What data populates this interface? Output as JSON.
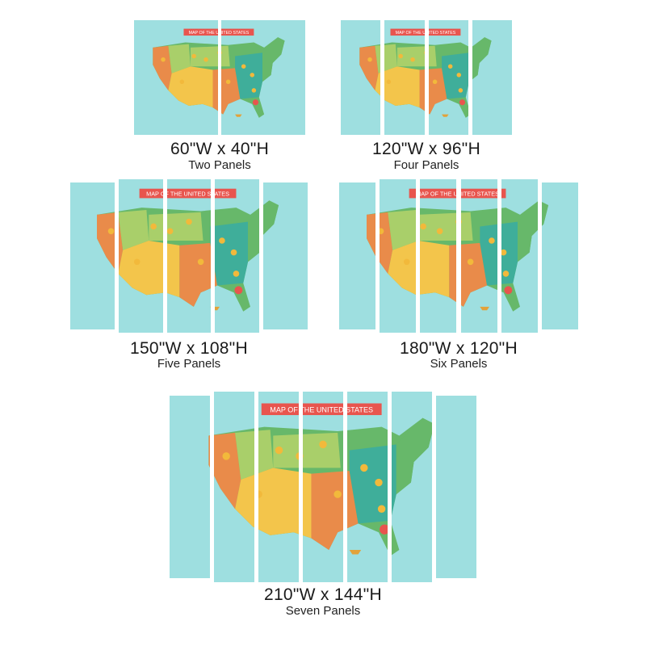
{
  "map_title": "MAP OF THE UNITED STATES",
  "colors": {
    "ocean": "#9edfe0",
    "banner": "#e8554e",
    "land_orange": "#e98b4a",
    "land_yellow": "#f3c54b",
    "land_green": "#67b86a",
    "land_teal": "#3fae9a",
    "land_light_green": "#a9cf6a"
  },
  "options": [
    {
      "size": "60\"W x 40\"H",
      "panels": "Two Panels",
      "panel_count": 2
    },
    {
      "size": "120\"W x 96\"H",
      "panels": "Four Panels",
      "panel_count": 4
    },
    {
      "size": "150\"W x 108\"H",
      "panels": "Five Panels",
      "panel_count": 5
    },
    {
      "size": "180\"W x 120\"H",
      "panels": "Six Panels",
      "panel_count": 6
    },
    {
      "size": "210\"W x 144\"H",
      "panels": "Seven Panels",
      "panel_count": 7
    }
  ]
}
